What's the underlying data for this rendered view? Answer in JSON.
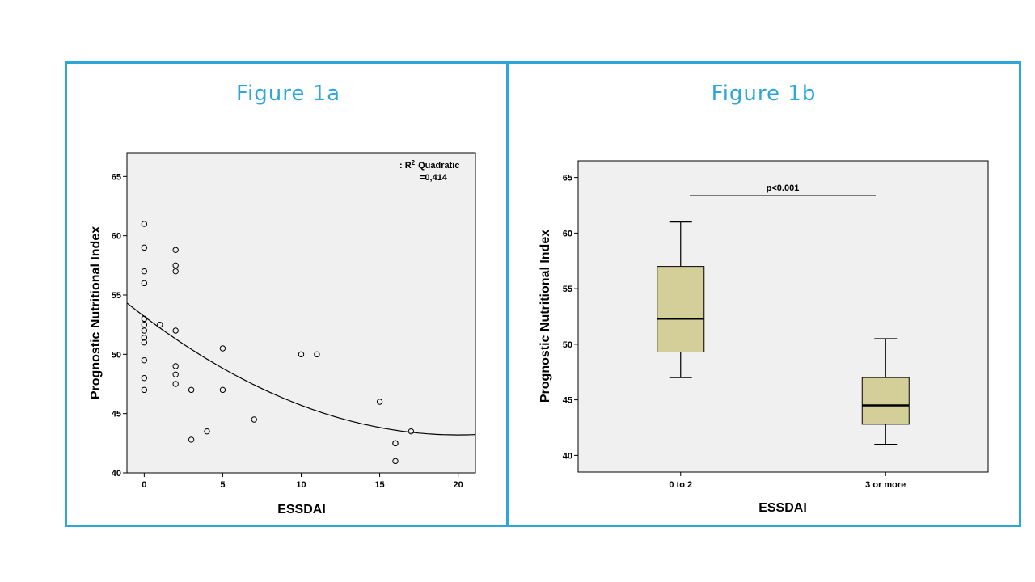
{
  "figure_a": {
    "title": "Figure 1a"
  },
  "figure_b": {
    "title": "Figure 1b"
  },
  "colors": {
    "frame": "#2ea7d8",
    "plot_bg": "#f0f0f0",
    "box_fill": "#d4cf99"
  },
  "chart_data": [
    {
      "type": "scatter",
      "title": "",
      "xlabel": "ESSDAI",
      "ylabel": "Prognostic Nutritional Index",
      "xlim": [
        -1.1,
        21.1
      ],
      "ylim": [
        40,
        67
      ],
      "xticks": [
        0,
        5,
        10,
        15,
        20
      ],
      "yticks": [
        40,
        45,
        50,
        55,
        60,
        65
      ],
      "grid": false,
      "fit": {
        "label_prefix": ": R",
        "label_sup": "2",
        "label_name": "Quadratic",
        "label_value": "=0,414",
        "coefficients": [
          53.2,
          -1.0,
          0.025
        ],
        "x_range": [
          -1.1,
          21.1
        ]
      },
      "points": [
        {
          "x": 0,
          "y": 61.0
        },
        {
          "x": 0,
          "y": 59.0
        },
        {
          "x": 0,
          "y": 57.0
        },
        {
          "x": 0,
          "y": 56.0
        },
        {
          "x": 0,
          "y": 53.0
        },
        {
          "x": 0,
          "y": 52.5
        },
        {
          "x": 0,
          "y": 52.0
        },
        {
          "x": 0,
          "y": 51.4
        },
        {
          "x": 0,
          "y": 51.0
        },
        {
          "x": 0,
          "y": 49.5
        },
        {
          "x": 0,
          "y": 48.0
        },
        {
          "x": 0,
          "y": 47.0
        },
        {
          "x": 1,
          "y": 52.5
        },
        {
          "x": 2,
          "y": 58.8
        },
        {
          "x": 2,
          "y": 57.5
        },
        {
          "x": 2,
          "y": 57.0
        },
        {
          "x": 2,
          "y": 52.0
        },
        {
          "x": 2,
          "y": 49.0
        },
        {
          "x": 2,
          "y": 48.3
        },
        {
          "x": 2,
          "y": 47.5
        },
        {
          "x": 3,
          "y": 47.0
        },
        {
          "x": 3,
          "y": 42.8
        },
        {
          "x": 4,
          "y": 43.5
        },
        {
          "x": 5,
          "y": 50.5
        },
        {
          "x": 5,
          "y": 47.0
        },
        {
          "x": 7,
          "y": 44.5
        },
        {
          "x": 10,
          "y": 50.0
        },
        {
          "x": 11,
          "y": 50.0
        },
        {
          "x": 15,
          "y": 46.0
        },
        {
          "x": 16,
          "y": 42.5
        },
        {
          "x": 16,
          "y": 42.5
        },
        {
          "x": 16,
          "y": 41.0
        },
        {
          "x": 17,
          "y": 43.5
        }
      ]
    },
    {
      "type": "box",
      "title": "",
      "xlabel": "ESSDAI",
      "ylabel": "Prognostic Nutritional Index",
      "ylim": [
        38.5,
        66.5
      ],
      "yticks": [
        40,
        45,
        50,
        55,
        60,
        65
      ],
      "grid": false,
      "categories": [
        "0 to 2",
        "3 or more"
      ],
      "boxes": [
        {
          "min": 47.0,
          "q1": 49.3,
          "median": 52.3,
          "q3": 57.0,
          "max": 61.0
        },
        {
          "min": 41.0,
          "q1": 42.8,
          "median": 44.5,
          "q3": 47.0,
          "max": 50.5
        }
      ],
      "annotation": {
        "text": "p<0.001"
      }
    }
  ]
}
